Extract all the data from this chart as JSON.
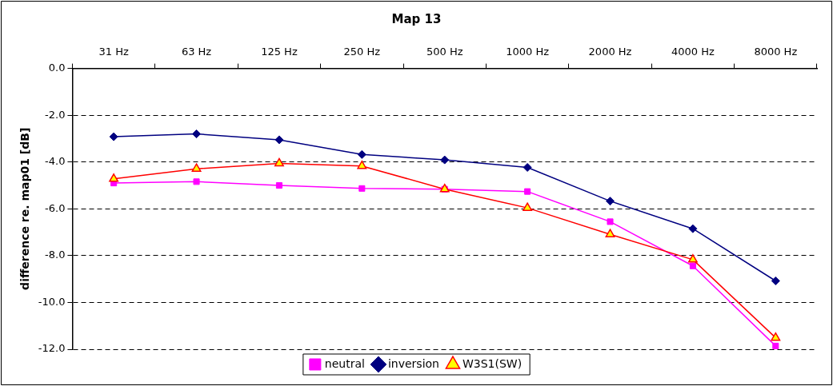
{
  "chart_data": {
    "type": "line",
    "title": "Map 13",
    "ylabel": "difference re. map01 [dB]",
    "categories": [
      "31 Hz",
      "63 Hz",
      "125 Hz",
      "250 Hz",
      "500 Hz",
      "1000 Hz",
      "2000 Hz",
      "4000 Hz",
      "8000 Hz"
    ],
    "series": [
      {
        "name": "neutral",
        "color": "#ff00ff",
        "marker": "square",
        "values": [
          -4.9,
          -4.84,
          -5.0,
          -5.13,
          -5.16,
          -5.26,
          -6.55,
          -8.44,
          -11.86
        ]
      },
      {
        "name": "inversion",
        "color": "#000080",
        "marker": "diamond",
        "values": [
          -2.92,
          -2.8,
          -3.05,
          -3.68,
          -3.91,
          -4.23,
          -5.67,
          -6.85,
          -9.08
        ]
      },
      {
        "name": "W3S1(SW)",
        "color": "#ff0000",
        "marker": "triangle",
        "values": [
          -4.72,
          -4.29,
          -4.06,
          -4.17,
          -5.16,
          -5.96,
          -7.09,
          -8.17,
          -11.51
        ]
      }
    ],
    "ylim": [
      -12,
      0
    ],
    "yticks": [
      {
        "value": 0,
        "label": "0.0"
      },
      {
        "value": -2,
        "label": "-2.0"
      },
      {
        "value": -4,
        "label": "-4.0"
      },
      {
        "value": -6,
        "label": "-6.0"
      },
      {
        "value": -8,
        "label": "-8.0"
      },
      {
        "value": -10,
        "label": "-10.0"
      },
      {
        "value": -12,
        "label": "-12.0"
      }
    ],
    "grid": "y",
    "legend": "bottom",
    "line_style": "solid"
  }
}
